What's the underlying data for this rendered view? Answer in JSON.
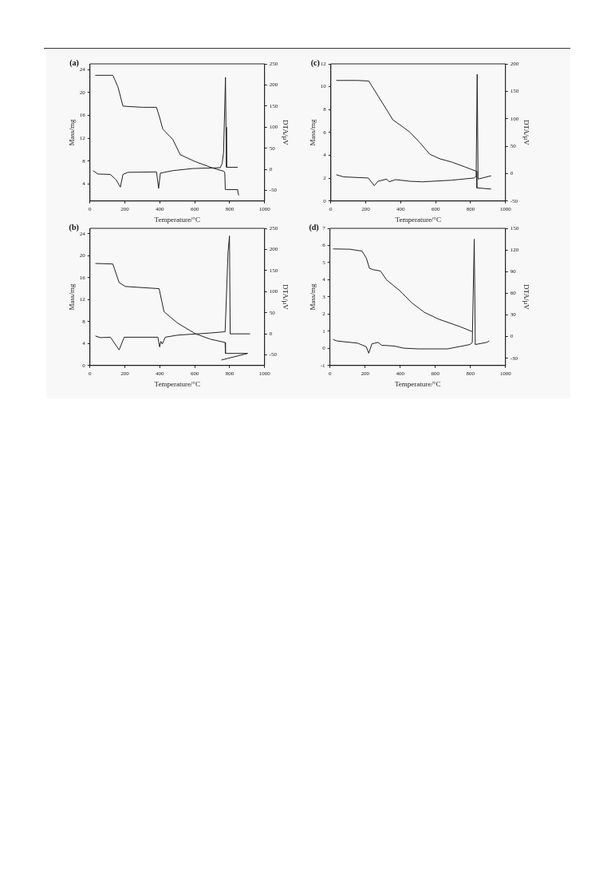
{
  "chart_data": [
    {
      "type": "line",
      "title": "(a)",
      "xlabel": "Temperature/°C",
      "ylabel": "Mass/mg",
      "y2label": "DTA/μV",
      "xlim": [
        0,
        1000
      ],
      "xticks": [
        0,
        200,
        400,
        600,
        800,
        1000
      ],
      "ylim": [
        1,
        25
      ],
      "yticks": [
        4,
        8,
        12,
        16,
        20,
        24
      ],
      "y2lim": [
        -75,
        250
      ],
      "y2ticks": [
        -50,
        0,
        50,
        100,
        150,
        200,
        250
      ],
      "grid": false,
      "series": [
        {
          "color": "#222222",
          "x": [
            30,
            131,
            160,
            189,
            300,
            381,
            400,
            417,
            474,
            517,
            603,
            700,
            767,
            772,
            775,
            781,
            846,
            848,
            852
          ],
          "values": [
            23.0,
            23.0,
            21,
            17.6,
            17.4,
            17.4,
            15.5,
            13.6,
            11.8,
            9.1,
            7.9,
            6.8,
            6.2,
            6.0,
            3.0,
            3.0,
            3.0,
            2.4,
            2.0
          ]
        },
        {
          "color": "#222222",
          "axis": "y2",
          "x": [
            17,
            46,
            117,
            150,
            174,
            189,
            217,
            381,
            393,
            403,
            474,
            589,
            746,
            757,
            765,
            772,
            776,
            779,
            782,
            846
          ],
          "values": [
            -3,
            -11,
            -12,
            -25,
            -42,
            -12,
            -7,
            -6,
            -45,
            -9,
            -3,
            2,
            4,
            14,
            40,
            150,
            218,
            100,
            5,
            5
          ]
        }
      ]
    },
    {
      "type": "line",
      "title": "(c)",
      "xlabel": "Temperature/°C",
      "ylabel": "Mass/mg",
      "y2label": "DTA/μV",
      "xlim": [
        0,
        1000
      ],
      "xticks": [
        0,
        200,
        400,
        600,
        800,
        1000
      ],
      "ylim": [
        0,
        12
      ],
      "yticks": [
        0,
        2,
        4,
        6,
        8,
        10,
        12
      ],
      "y2lim": [
        -50,
        200
      ],
      "y2ticks": [
        -50,
        0,
        50,
        100,
        150,
        200
      ],
      "grid": false,
      "series": [
        {
          "color": "#222222",
          "x": [
            31,
            151,
            217,
            270,
            327,
            355,
            411,
            454,
            510,
            566,
            623,
            694,
            765,
            834,
            836,
            918
          ],
          "values": [
            10.55,
            10.55,
            10.5,
            9.2,
            7.8,
            7.1,
            6.5,
            6.0,
            5.1,
            4.1,
            3.7,
            3.4,
            3.0,
            2.6,
            1.15,
            1.05
          ]
        },
        {
          "color": "#222222",
          "axis": "y2",
          "x": [
            31,
            73,
            214,
            249,
            270,
            320,
            334,
            370,
            454,
            524,
            694,
            820,
            832,
            838,
            843,
            918
          ],
          "values": [
            -2,
            -6,
            -8,
            -22,
            -14,
            -10,
            -15,
            -11,
            -14,
            -15,
            -12,
            -8,
            -5,
            181,
            -10,
            -4
          ]
        }
      ]
    },
    {
      "type": "line",
      "title": "(b)",
      "xlabel": "Temperature/°C",
      "ylabel": "Mass/mg",
      "y2label": "DTA/μV",
      "xlim": [
        0,
        1000
      ],
      "xticks": [
        0,
        200,
        400,
        600,
        800,
        1000
      ],
      "ylim": [
        0,
        25
      ],
      "yticks": [
        0,
        4,
        8,
        12,
        16,
        20,
        24
      ],
      "y2lim": [
        -75,
        250
      ],
      "y2ticks": [
        -50,
        0,
        50,
        100,
        150,
        200,
        250
      ],
      "grid": false,
      "series": [
        {
          "color": "#222222",
          "x": [
            31,
            131,
            167,
            203,
            396,
            424,
            503,
            603,
            689,
            774,
            776,
            781,
            903,
            753
          ],
          "values": [
            18.6,
            18.5,
            15.1,
            14.4,
            14.0,
            9.8,
            7.7,
            5.8,
            4.8,
            4.2,
            2.2,
            2.2,
            2.2,
            1.0
          ]
        },
        {
          "color": "#222222",
          "axis": "y2",
          "x": [
            31,
            60,
            117,
            167,
            196,
            389,
            399,
            406,
            414,
            431,
            503,
            689,
            774,
            791,
            799,
            803,
            917
          ],
          "values": [
            -5,
            -9,
            -8,
            -38,
            -8,
            -8,
            -31,
            -18,
            -24,
            -8,
            -3,
            2,
            5,
            196,
            232,
            0,
            0
          ]
        }
      ]
    },
    {
      "type": "line",
      "title": "(d)",
      "xlabel": "Temperature/°C",
      "ylabel": "Mass/mg",
      "y2label": "DTA/μV",
      "xlim": [
        0,
        1000
      ],
      "xticks": [
        0,
        200,
        400,
        600,
        800,
        1000
      ],
      "ylim": [
        -1,
        7
      ],
      "yticks": [
        -1,
        0,
        1,
        2,
        3,
        4,
        5,
        6,
        7
      ],
      "y2lim": [
        -40,
        150
      ],
      "y2ticks": [
        -30,
        0,
        30,
        60,
        90,
        120,
        150
      ],
      "grid": false,
      "series": [
        {
          "color": "#222222",
          "x": [
            18,
            115,
            183,
            207,
            225,
            246,
            288,
            322,
            397,
            467,
            538,
            620,
            740,
            810
          ],
          "values": [
            5.8,
            5.78,
            5.67,
            5.27,
            4.67,
            4.59,
            4.51,
            4.0,
            3.37,
            2.65,
            2.1,
            1.7,
            1.27,
            0.98
          ]
        },
        {
          "color": "#222222",
          "axis": "y2",
          "x": [
            18,
            39,
            157,
            207,
            221,
            239,
            274,
            295,
            365,
            420,
            503,
            670,
            797,
            811,
            822,
            828,
            893,
            907
          ],
          "values": [
            -4,
            -6,
            -9,
            -14,
            -23,
            -10,
            -8,
            -12,
            -13,
            -16,
            -17,
            -17,
            -11,
            -8,
            135,
            -11,
            -8,
            -6
          ]
        }
      ]
    }
  ]
}
